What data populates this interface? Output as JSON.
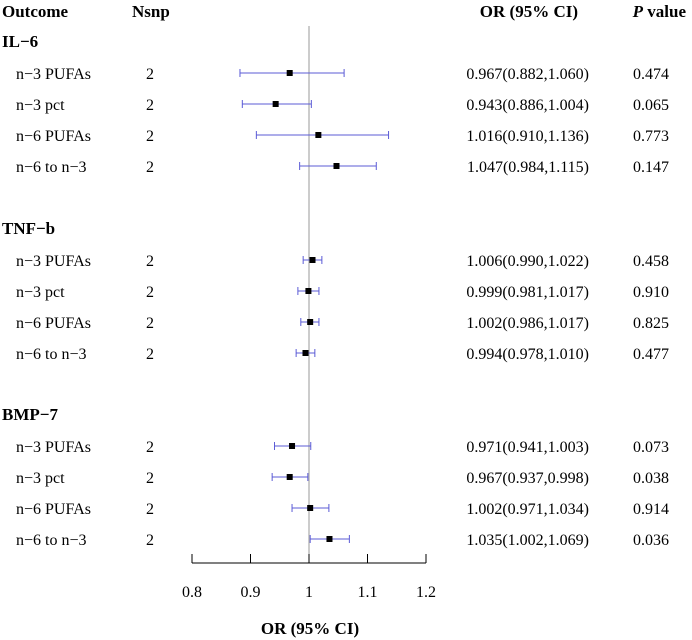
{
  "chart_data": {
    "type": "forest",
    "headers": {
      "outcome": "Outcome",
      "nsnp": "Nsnp",
      "or": "OR (95% CI)",
      "p_italic": "P",
      "p_rest": " value"
    },
    "xlabel": "OR (95% CI)",
    "xlim": [
      0.8,
      1.2
    ],
    "xticks": [
      "0.8",
      "0.9",
      "1",
      "1.1",
      "1.2"
    ],
    "reference_line": 1,
    "ci_color": "#5b5bd6",
    "point_color": "#000000",
    "groups": [
      {
        "name": "IL−6",
        "rows": [
          {
            "exposure": "n−3 PUFAs",
            "nsnp": "2",
            "or": 0.967,
            "lo": 0.882,
            "hi": 1.06,
            "or_text": "0.967(0.882,1.060)",
            "p": "0.474"
          },
          {
            "exposure": "n−3 pct",
            "nsnp": "2",
            "or": 0.943,
            "lo": 0.886,
            "hi": 1.004,
            "or_text": "0.943(0.886,1.004)",
            "p": "0.065"
          },
          {
            "exposure": "n−6 PUFAs",
            "nsnp": "2",
            "or": 1.016,
            "lo": 0.91,
            "hi": 1.136,
            "or_text": "1.016(0.910,1.136)",
            "p": "0.773"
          },
          {
            "exposure": "n−6 to n−3",
            "nsnp": "2",
            "or": 1.047,
            "lo": 0.984,
            "hi": 1.115,
            "or_text": "1.047(0.984,1.115)",
            "p": "0.147"
          }
        ]
      },
      {
        "name": "TNF−b",
        "rows": [
          {
            "exposure": "n−3 PUFAs",
            "nsnp": "2",
            "or": 1.006,
            "lo": 0.99,
            "hi": 1.022,
            "or_text": "1.006(0.990,1.022)",
            "p": "0.458"
          },
          {
            "exposure": "n−3 pct",
            "nsnp": "2",
            "or": 0.999,
            "lo": 0.981,
            "hi": 1.017,
            "or_text": "0.999(0.981,1.017)",
            "p": "0.910"
          },
          {
            "exposure": "n−6 PUFAs",
            "nsnp": "2",
            "or": 1.002,
            "lo": 0.986,
            "hi": 1.017,
            "or_text": "1.002(0.986,1.017)",
            "p": "0.825"
          },
          {
            "exposure": "n−6 to n−3",
            "nsnp": "2",
            "or": 0.994,
            "lo": 0.978,
            "hi": 1.01,
            "or_text": "0.994(0.978,1.010)",
            "p": "0.477"
          }
        ]
      },
      {
        "name": "BMP−7",
        "rows": [
          {
            "exposure": "n−3 PUFAs",
            "nsnp": "2",
            "or": 0.971,
            "lo": 0.941,
            "hi": 1.003,
            "or_text": "0.971(0.941,1.003)",
            "p": "0.073"
          },
          {
            "exposure": "n−3 pct",
            "nsnp": "2",
            "or": 0.967,
            "lo": 0.937,
            "hi": 0.998,
            "or_text": "0.967(0.937,0.998)",
            "p": "0.038"
          },
          {
            "exposure": "n−6 PUFAs",
            "nsnp": "2",
            "or": 1.002,
            "lo": 0.971,
            "hi": 1.034,
            "or_text": "1.002(0.971,1.034)",
            "p": "0.914"
          },
          {
            "exposure": "n−6 to n−3",
            "nsnp": "2",
            "or": 1.035,
            "lo": 1.002,
            "hi": 1.069,
            "or_text": "1.035(1.002,1.069)",
            "p": "0.036"
          }
        ]
      }
    ]
  }
}
